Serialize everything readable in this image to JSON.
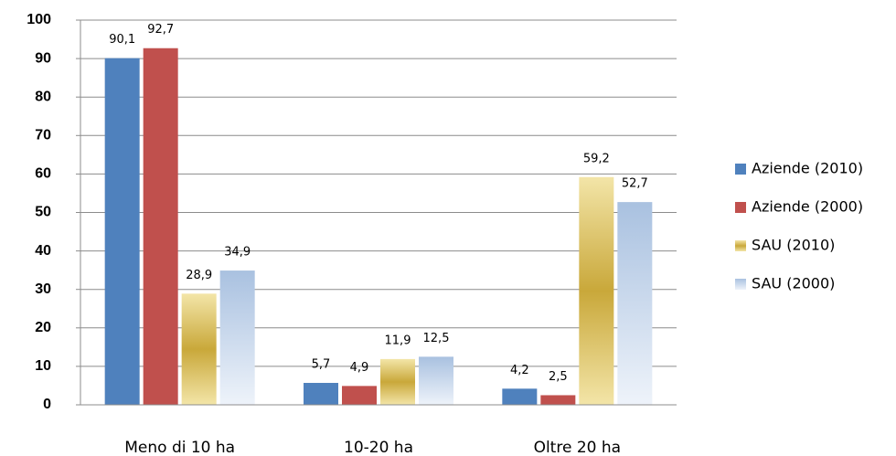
{
  "chart_data": {
    "type": "bar",
    "categories": [
      "Meno di 10 ha",
      "10-20 ha",
      "Oltre 20 ha"
    ],
    "series": [
      {
        "name": "Aziende (2010)",
        "color": "#4f81bd",
        "values": [
          90.1,
          5.7,
          4.2
        ],
        "value_labels": [
          "90,1",
          "5,7",
          "4,2"
        ]
      },
      {
        "name": "Aziende (2000)",
        "color": "#c0504d",
        "values": [
          92.7,
          4.9,
          2.5
        ],
        "value_labels": [
          "92,7",
          "4,9",
          "2,5"
        ]
      },
      {
        "name": "SAU (2010)",
        "color": "#c9a83a",
        "values": [
          28.9,
          11.9,
          59.2
        ],
        "value_labels": [
          "28,9",
          "11,9",
          "59,2"
        ]
      },
      {
        "name": "SAU (2000)",
        "color": "#b9cde5",
        "values": [
          34.9,
          12.5,
          52.7
        ],
        "value_labels": [
          "34,9",
          "12,5",
          "52,7"
        ]
      }
    ],
    "ylim": [
      0,
      100
    ],
    "yticks": [
      0,
      10,
      20,
      30,
      40,
      50,
      60,
      70,
      80,
      90,
      100
    ],
    "grid": true,
    "legend": "right"
  }
}
